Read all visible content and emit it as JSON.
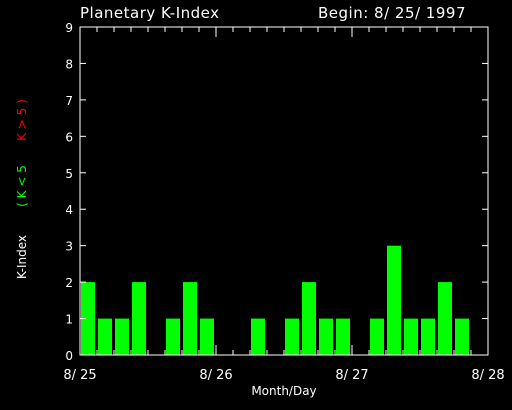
{
  "header": {
    "title": "Planetary K-Index",
    "begin": "Begin: 8/ 25/ 1997"
  },
  "colors": {
    "background": "#000000",
    "axes": "#ffffff",
    "bar_low": "#00ff00",
    "label_low": "#00ff00",
    "label_high": "#ff0000"
  },
  "chart_data": {
    "type": "bar",
    "title": "Planetary K-Index",
    "xlabel": "Month/Day",
    "ylabel": "K-Index",
    "ylabel_low": "( K < 5",
    "ylabel_high": "K > 5 )",
    "ylim": [
      0,
      9
    ],
    "yticks": [
      0,
      1,
      2,
      3,
      4,
      5,
      6,
      7,
      8,
      9
    ],
    "xlim": [
      0,
      3
    ],
    "xtick_labels": [
      "8/ 25",
      "8/ 26",
      "8/ 27",
      "8/ 28"
    ],
    "bar_interval_days": 0.125,
    "values": [
      2,
      1,
      1,
      2,
      0,
      1,
      2,
      1,
      0,
      0,
      1,
      0,
      1,
      2,
      1,
      1,
      0,
      1,
      3,
      1,
      1,
      2,
      1,
      0
    ],
    "grid": false
  }
}
